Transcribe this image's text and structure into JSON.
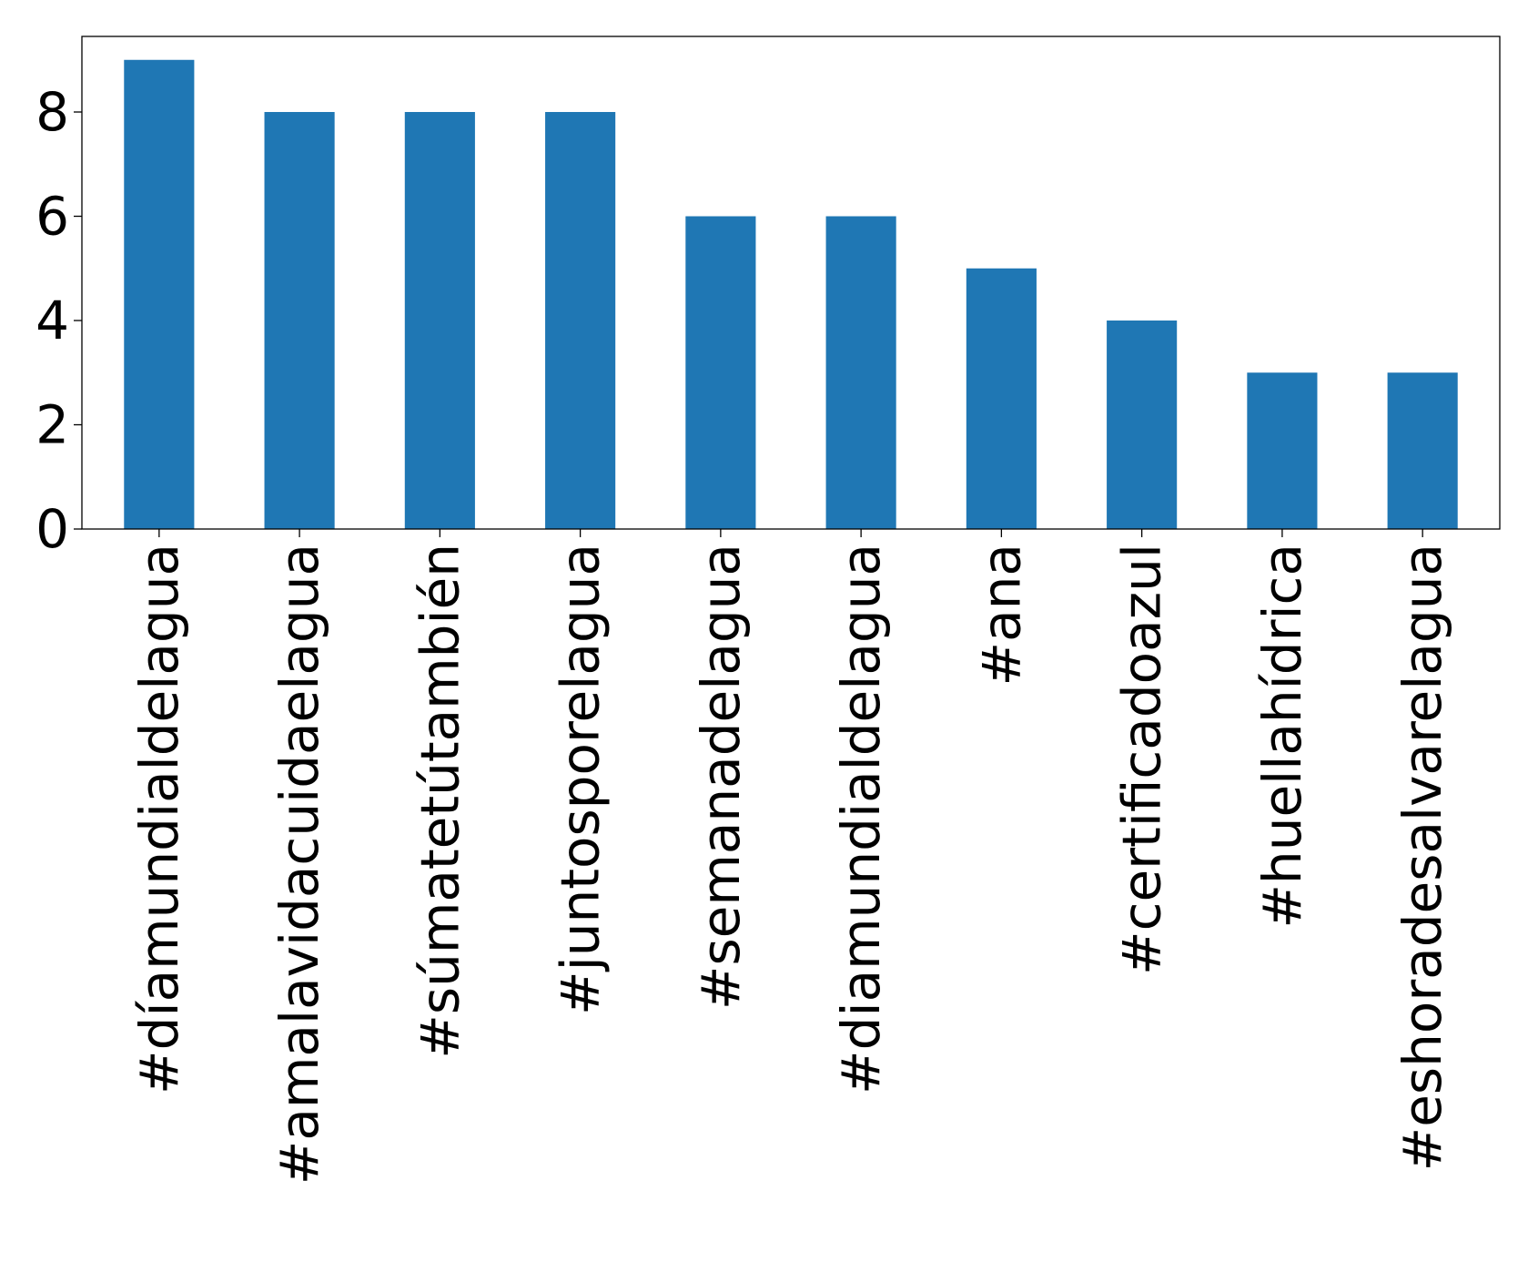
{
  "chart_data": {
    "type": "bar",
    "title": "",
    "xlabel": "",
    "ylabel": "",
    "categories": [
      "#díamundialdelagua",
      "#amalavidacuidaelagua",
      "#súmatetútambién",
      "#juntosporelagua",
      "#semanadelagua",
      "#diamundialdelagua",
      "#ana",
      "#certificadoazul",
      "#huellahídrica",
      "#eshoradesalvarelagua"
    ],
    "values": [
      9,
      8,
      8,
      8,
      6,
      6,
      5,
      4,
      3,
      3
    ],
    "ylim": [
      0,
      9.45
    ],
    "yticks": [
      0,
      2,
      4,
      6,
      8
    ],
    "bar_color": "#1f77b4",
    "grid": false,
    "legend": "none"
  }
}
